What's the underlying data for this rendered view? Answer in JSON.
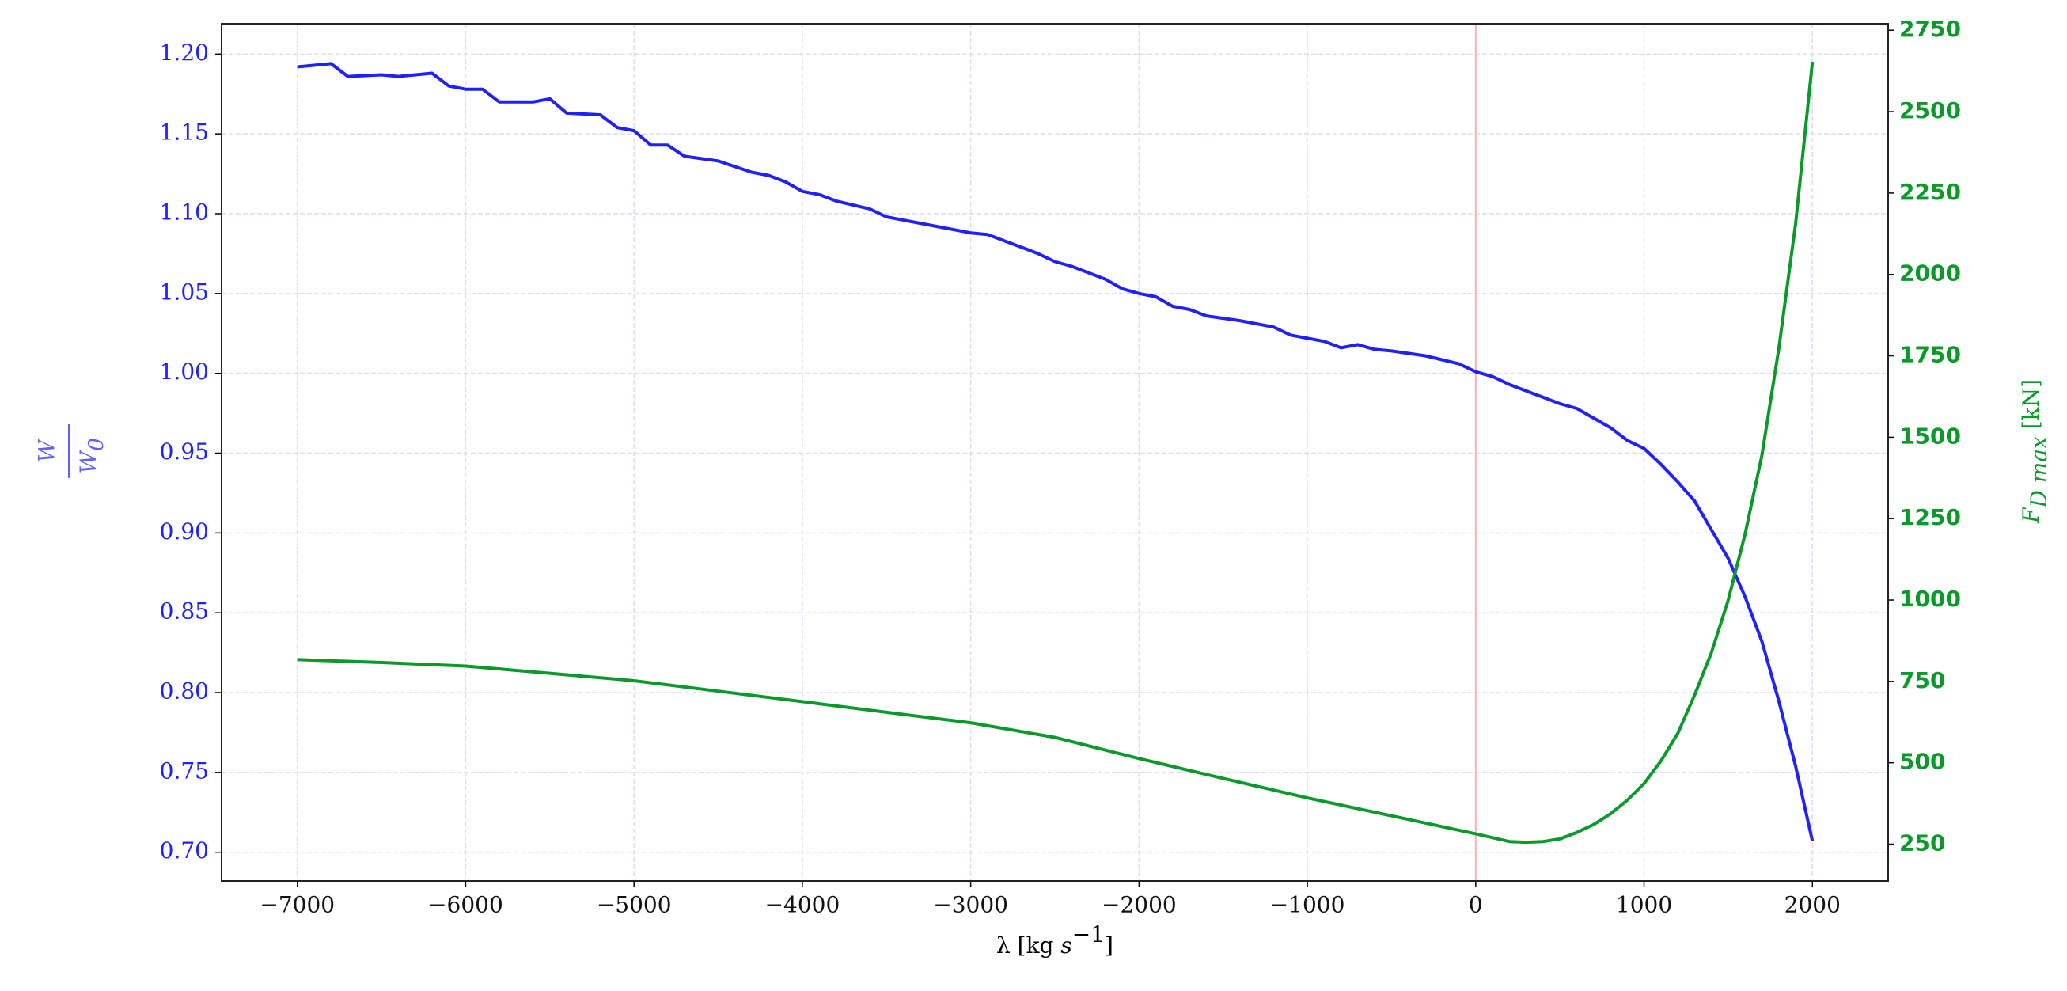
{
  "chart_data": {
    "type": "line",
    "xlabel": {
      "text": "λ [kg ",
      "italic": "s",
      "sup": "−1",
      "close": "]"
    },
    "ylabel": {
      "numerator": "W",
      "denominator": "W",
      "sub": "0"
    },
    "y2label": {
      "italic": "F",
      "sub": "D max",
      "unit": " [kN]"
    },
    "xlim": [
      -7450,
      2450
    ],
    "ylim": [
      0.682,
      1.219
    ],
    "y2lim": [
      137,
      2770
    ],
    "xticks": [
      {
        "value": -7000,
        "label": "−7000"
      },
      {
        "value": -6000,
        "label": "−6000"
      },
      {
        "value": -5000,
        "label": "−5000"
      },
      {
        "value": -4000,
        "label": "−4000"
      },
      {
        "value": -3000,
        "label": "−3000"
      },
      {
        "value": -2000,
        "label": "−2000"
      },
      {
        "value": -1000,
        "label": "−1000"
      },
      0,
      1000,
      2000
    ],
    "yticks": [
      {
        "value": 0.7,
        "label": "0.70"
      },
      {
        "value": 0.75,
        "label": "0.75"
      },
      {
        "value": 0.8,
        "label": "0.80"
      },
      {
        "value": 0.85,
        "label": "0.85"
      },
      {
        "value": 0.9,
        "label": "0.90"
      },
      {
        "value": 0.95,
        "label": "0.95"
      },
      {
        "value": 1.0,
        "label": "1.00"
      },
      {
        "value": 1.05,
        "label": "1.05"
      },
      {
        "value": 1.1,
        "label": "1.10"
      },
      {
        "value": 1.15,
        "label": "1.15"
      },
      {
        "value": 1.2,
        "label": "1.20"
      }
    ],
    "y2ticks": [
      250,
      500,
      750,
      1000,
      1250,
      1500,
      1750,
      2000,
      2250,
      2500,
      2750
    ],
    "grid": true,
    "grid_color": "#dcdcf4",
    "vline": {
      "x": 0,
      "color": "#ffb0b0"
    },
    "y_color": "#2020ff",
    "y2_color": "#0a9a2a",
    "series": [
      {
        "color": "#2020ff",
        "x": [
          -7000,
          -6800,
          -6700,
          -6500,
          -6400,
          -6200,
          -6100,
          -6000,
          -5900,
          -5800,
          -5600,
          -5500,
          -5400,
          -5200,
          -5100,
          -5000,
          -4900,
          -4800,
          -4700,
          -4500,
          -4300,
          -4200,
          -4100,
          -4000,
          -3900,
          -3800,
          -3600,
          -3500,
          -3200,
          -3000,
          -2900,
          -2800,
          -2700,
          -2600,
          -2500,
          -2400,
          -2200,
          -2100,
          -2000,
          -1900,
          -1800,
          -1700,
          -1600,
          -1400,
          -1200,
          -1100,
          -900,
          -800,
          -700,
          -600,
          -500,
          -300,
          -100,
          0,
          100,
          200,
          300,
          400,
          500,
          600,
          700,
          800,
          900,
          1000,
          1100,
          1200,
          1300,
          1400,
          1500,
          1600,
          1700,
          1800,
          1900,
          2000
        ],
        "values": [
          1.192,
          1.194,
          1.186,
          1.187,
          1.186,
          1.188,
          1.18,
          1.178,
          1.178,
          1.17,
          1.17,
          1.172,
          1.163,
          1.162,
          1.154,
          1.152,
          1.143,
          1.143,
          1.136,
          1.133,
          1.126,
          1.124,
          1.12,
          1.114,
          1.112,
          1.108,
          1.103,
          1.098,
          1.092,
          1.088,
          1.087,
          1.083,
          1.079,
          1.075,
          1.07,
          1.067,
          1.059,
          1.053,
          1.05,
          1.048,
          1.042,
          1.04,
          1.036,
          1.033,
          1.029,
          1.024,
          1.02,
          1.016,
          1.018,
          1.015,
          1.014,
          1.011,
          1.006,
          1.001,
          0.998,
          0.993,
          0.989,
          0.985,
          0.981,
          0.978,
          0.972,
          0.966,
          0.958,
          0.953,
          0.943,
          0.932,
          0.92,
          0.902,
          0.884,
          0.86,
          0.832,
          0.795,
          0.754,
          0.707
        ]
      },
      {
        "color": "#0a9a2a",
        "axis": "y2",
        "x": [
          -7000,
          -6500,
          -6000,
          -5500,
          -5000,
          -4500,
          -4000,
          -3500,
          -3000,
          -2500,
          -2000,
          -1500,
          -1000,
          -500,
          0,
          200,
          300,
          400,
          500,
          600,
          700,
          800,
          900,
          1000,
          1100,
          1200,
          1300,
          1400,
          1500,
          1600,
          1700,
          1800,
          1900,
          2000
        ],
        "values": [
          817,
          808,
          797,
          775,
          752,
          720,
          688,
          655,
          623,
          578,
          513,
          452,
          392,
          337,
          282,
          258,
          256,
          258,
          266,
          286,
          310,
          343,
          385,
          436,
          505,
          590,
          708,
          838,
          1000,
          1202,
          1445,
          1770,
          2155,
          2653
        ]
      }
    ]
  }
}
